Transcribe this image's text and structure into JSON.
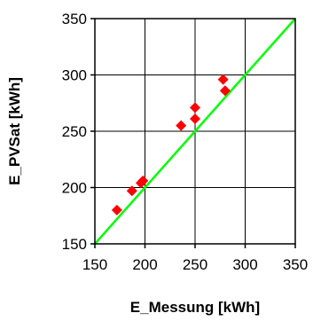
{
  "chart_data": {
    "type": "scatter",
    "xlabel": "E_Messung [kWh]",
    "ylabel": "E_PVSat [kWh]",
    "xlim": [
      150,
      350
    ],
    "ylim": [
      150,
      350
    ],
    "xticks": [
      150,
      200,
      250,
      300,
      350
    ],
    "yticks": [
      150,
      200,
      250,
      300,
      350
    ],
    "grid": true,
    "series": [
      {
        "marker": "diamond",
        "color": "#ff0000",
        "points": [
          {
            "x": 172,
            "y": 180
          },
          {
            "x": 187,
            "y": 197
          },
          {
            "x": 196,
            "y": 204
          },
          {
            "x": 198,
            "y": 206
          },
          {
            "x": 236,
            "y": 255
          },
          {
            "x": 250,
            "y": 261
          },
          {
            "x": 250,
            "y": 271
          },
          {
            "x": 278,
            "y": 296
          },
          {
            "x": 280,
            "y": 286
          }
        ]
      },
      {
        "type": "line",
        "color": "#00ff00",
        "points": [
          {
            "x": 150,
            "y": 150
          },
          {
            "x": 350,
            "y": 350
          }
        ]
      }
    ]
  }
}
